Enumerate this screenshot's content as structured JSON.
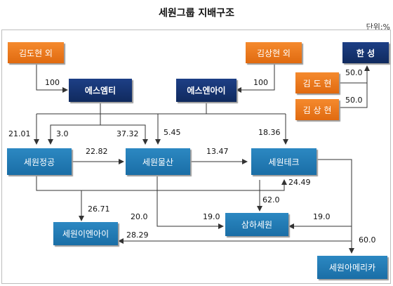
{
  "title": "세원그룹 지배구조",
  "unit": "단위:%",
  "entities": {
    "kim_dohyun_etc": "김도현 외",
    "kim_sanghyun_etc": "김상현 외",
    "hanseong": "한 성",
    "kim_dohyun": "김 도 현",
    "kim_sanghyun": "김 상 현",
    "s_mt": "에스엠티",
    "s_nai": "에스엔아이",
    "sewon_jeonggong": "세원정공",
    "sewon_mulsan": "세원물산",
    "sewon_tech": "세원테크",
    "samha_sewon": "삼하세원",
    "sewon_enai": "세원이엔아이",
    "sewon_america": "세원아메리카"
  },
  "stakes": {
    "dohyun_to_smt": "100",
    "sanghyun_to_snai": "100",
    "dohyun_to_hanseong": "50.0",
    "sanghyun_to_hanseong": "50.0",
    "to_jeonggong_a": "21.01",
    "to_jeonggong_b": "3.0",
    "to_mulsan_a": "37.32",
    "to_mulsan_b": "5.45",
    "to_tech": "18.36",
    "jeonggong_to_mulsan": "22.82",
    "mulsan_to_tech": "13.47",
    "to_tech_lower": "24.49",
    "jeonggong_to_enai": "26.71",
    "to_samha_62": "62.0",
    "mulsan_20": "20.0",
    "to_samha_19a": "19.0",
    "to_samha_19b": "19.0",
    "to_enai": "28.29",
    "to_america": "60.0"
  }
}
